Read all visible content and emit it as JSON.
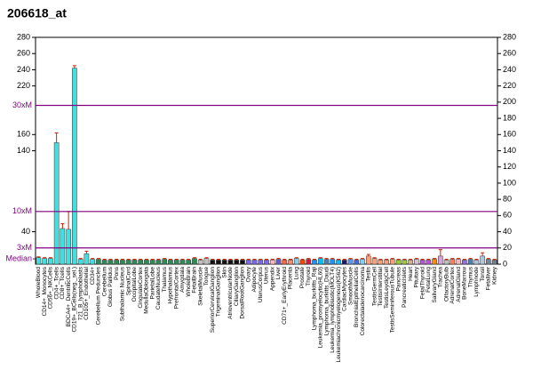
{
  "chart_data": {
    "type": "bar",
    "title": "206618_at",
    "categories": [
      "WholeBlood",
      "CD14+_Monocytes",
      "CD56+_NKCells",
      "CD4+_Tcells",
      "CD8+_Tcells",
      "BDCA4+_DentriticCells",
      "CD19+_BCells(neg._sel.)",
      "721_B_lymphoblasts",
      "CD105+_Endothelial",
      "CD34+",
      "Cerebellum Peduncles",
      "Cerebellum",
      "Globus Pallidus",
      "Pons",
      "Subthalamic Nucleus",
      "SpinalCord",
      "OccipitalLobe",
      "CingulateCortex",
      "MedullaOblongata",
      "ParietalLobe",
      "CaudateNucleus",
      "Thalamus",
      "Hypothalamus",
      "PrefrontalCortex",
      "Amygdala",
      "WholeBrain",
      "FetalBrain",
      "SkeletalMuscle",
      "Tongue",
      "SuperiorCervicalGanglion",
      "TrigeminalGanglion",
      "Skin",
      "AtrioventricularNode",
      "CiliaryGanglion",
      "DorsalRootGanglion",
      "Ovary",
      "Adipocyte",
      "UterusCorpus",
      "Uterus",
      "Appendix",
      "Liver",
      "CD71+_EarlyErythroid",
      "Placenta",
      "Lung",
      "Prostate",
      "Thyroid",
      "Lymphoma_burkitts_Raji",
      "Leukemia_promyelocytic(HL60)",
      "Lymphoma_burkitts_Daudi",
      "Leukemia_lymphoblastic(MOLT4)",
      "Leukemiachronicmyelogenous(K562)",
      "CardiacMyocytes",
      "SmoothMuscle",
      "BronchialEpithelialCells",
      "Colorectaladenocarcinoma",
      "Testis",
      "TestisGermCell",
      "TestisInterstitial",
      "TestisLeydigCell",
      "TestisSeminiferousTubule",
      "Pancreas",
      "PancreaticIslets",
      "Heart",
      "Pituitary",
      "FetalThyroid",
      "FetalLung",
      "SalivaryGland",
      "Trachea",
      "OlfactoryBulb",
      "AdrenalCortex",
      "AdrenalGland",
      "BoneMarrow",
      "Thymus",
      "Lymphnode",
      "Tonsil",
      "Fetalliver",
      "Kidney"
    ],
    "values": [
      8,
      7,
      7,
      150,
      44,
      43,
      242,
      6,
      13,
      6,
      6,
      5,
      5,
      5,
      5,
      5,
      5,
      5,
      5,
      5,
      5,
      6,
      5,
      5,
      5,
      5,
      7,
      5,
      7,
      5,
      5,
      5,
      5,
      5,
      5,
      5,
      5,
      5,
      5,
      5,
      6,
      5,
      5,
      7,
      5,
      6,
      5,
      7,
      6,
      6,
      5,
      5,
      6,
      5,
      6,
      10,
      7,
      5,
      5,
      6,
      5,
      5,
      5,
      6,
      5,
      5,
      6,
      10,
      5,
      6,
      6,
      5,
      6,
      5,
      10,
      6,
      5
    ],
    "errors": [
      1,
      1,
      1,
      12,
      6,
      22,
      3,
      1,
      3,
      1,
      1,
      1,
      1,
      1,
      1,
      1,
      1,
      1,
      1,
      1,
      1,
      1,
      1,
      1,
      1,
      1,
      1,
      1,
      1,
      1,
      1,
      1,
      1,
      1,
      1,
      1,
      1,
      1,
      1,
      1,
      1,
      1,
      1,
      1,
      1,
      1,
      1,
      1,
      1,
      1,
      1,
      1,
      1,
      1,
      1,
      2,
      1,
      1,
      1,
      1,
      1,
      1,
      1,
      1,
      1,
      1,
      1,
      8,
      1,
      1,
      1,
      1,
      1,
      1,
      4,
      1,
      1
    ],
    "colors": [
      "#40e0e0",
      "#40e0e0",
      "#40e0e0",
      "#40e0e0",
      "#40e0e0",
      "#40e0e0",
      "#40e0e0",
      "#40e0e0",
      "#40e0e0",
      "#40e0e0",
      "#2e8b57",
      "#2e8b57",
      "#2e8b57",
      "#2e8b57",
      "#2e8b57",
      "#2e8b57",
      "#2e8b57",
      "#2e8b57",
      "#2e8b57",
      "#2e8b57",
      "#2e8b57",
      "#2e8b57",
      "#2e8b57",
      "#2e8b57",
      "#2e8b57",
      "#2e8b57",
      "#2e8b57",
      "#c0c0c0",
      "#c0c0c0",
      "#111111",
      "#111111",
      "#111111",
      "#111111",
      "#111111",
      "#111111",
      "#7b68ee",
      "#7b68ee",
      "#7b68ee",
      "#7b68ee",
      "#ffb6c1",
      "#6a5acd",
      "#ff6347",
      "#ff8c69",
      "#87ceeb",
      "#ff4500",
      "#dc143c",
      "#1e90ff",
      "#00bfff",
      "#4682b4",
      "#1e90ff",
      "#00bfff",
      "#191970",
      "#6495ed",
      "#4169e1",
      "#87cefa",
      "#ffa07a",
      "#ffa07a",
      "#ffa07a",
      "#ffa07a",
      "#ffa07a",
      "#9acd32",
      "#9acd32",
      "#d2b48c",
      "#d8bfd8",
      "#ba55d3",
      "#ba55d3",
      "#ff8c00",
      "#dda0dd",
      "#c0c0c0",
      "#ff7f50",
      "#ffb6c1",
      "#9370db",
      "#4682b4",
      "#b0c4de",
      "#b0c4de",
      "#778899",
      "#708090"
    ],
    "ylim": [
      0,
      280
    ],
    "yticks": [
      40,
      140,
      160,
      220,
      240,
      260,
      280
    ],
    "y2lim": [
      0,
      280
    ],
    "y2ticks": [
      0,
      20,
      40,
      60,
      80,
      100,
      120,
      140,
      160,
      180,
      200,
      220,
      240,
      260,
      280
    ],
    "reference_lines": [
      {
        "label": "30xM",
        "value": 196
      },
      {
        "label": "10xM",
        "value": 65
      },
      {
        "label": "3xM",
        "value": 20
      },
      {
        "label": "Median",
        "value": 6.5
      }
    ]
  }
}
